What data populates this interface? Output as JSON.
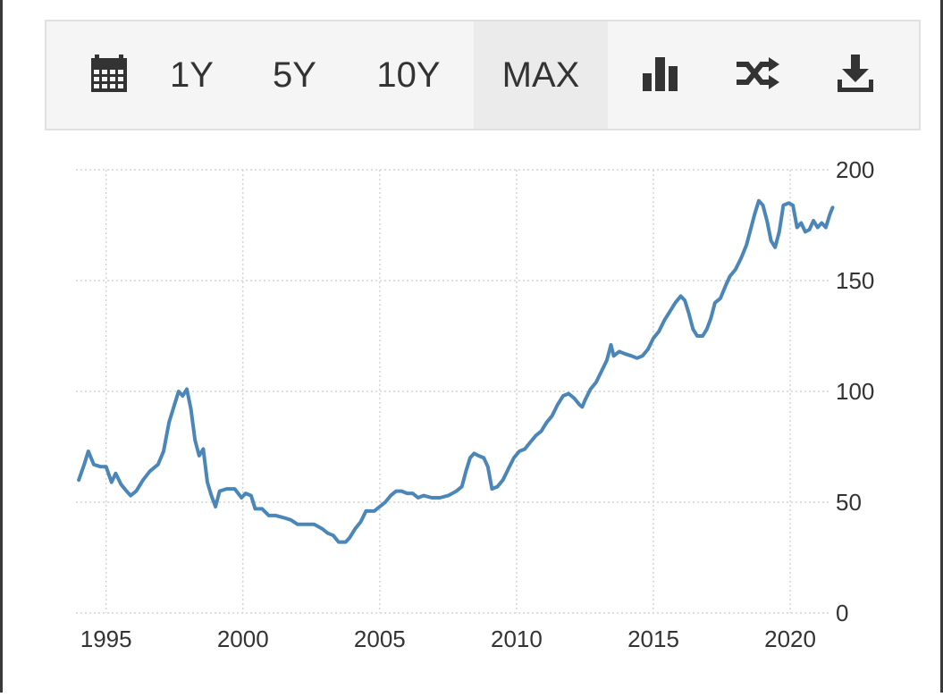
{
  "toolbar": {
    "calendar_icon": "calendar-icon",
    "range_1y": "1Y",
    "range_5y": "5Y",
    "range_10y": "10Y",
    "range_max": "MAX",
    "active_range": "MAX",
    "chart_type_icon": "bar-chart-icon",
    "compare_icon": "shuffle-icon",
    "download_icon": "download-icon"
  },
  "colors": {
    "line": "#4a86b8",
    "grid": "#d4d4d4",
    "axis_text": "#333333"
  },
  "chart_data": {
    "type": "line",
    "title": "",
    "xlabel": "",
    "ylabel": "",
    "x_ticks": [
      "1995",
      "2000",
      "2005",
      "2010",
      "2015",
      "2020"
    ],
    "y_ticks": [
      "0",
      "50",
      "100",
      "150",
      "200"
    ],
    "xlim": [
      1993.9,
      2021.5
    ],
    "ylim": [
      0,
      200
    ],
    "grid": true,
    "legend": "none",
    "series": [
      {
        "values": [
          [
            1994.0,
            60
          ],
          [
            1994.2,
            67
          ],
          [
            1994.35,
            73
          ],
          [
            1994.55,
            67
          ],
          [
            1994.8,
            66
          ],
          [
            1995.0,
            66
          ],
          [
            1995.2,
            59
          ],
          [
            1995.35,
            63
          ],
          [
            1995.55,
            58
          ],
          [
            1995.75,
            55
          ],
          [
            1995.9,
            53
          ],
          [
            1996.1,
            55
          ],
          [
            1996.35,
            60
          ],
          [
            1996.6,
            64
          ],
          [
            1996.9,
            67
          ],
          [
            1997.1,
            73
          ],
          [
            1997.3,
            86
          ],
          [
            1997.5,
            94
          ],
          [
            1997.65,
            100
          ],
          [
            1997.8,
            98
          ],
          [
            1997.95,
            101
          ],
          [
            1998.1,
            92
          ],
          [
            1998.25,
            78
          ],
          [
            1998.4,
            71
          ],
          [
            1998.55,
            74
          ],
          [
            1998.7,
            59
          ],
          [
            1998.85,
            53
          ],
          [
            1999.0,
            48
          ],
          [
            1999.15,
            55
          ],
          [
            1999.4,
            56
          ],
          [
            1999.7,
            56
          ],
          [
            1999.95,
            52
          ],
          [
            2000.1,
            54
          ],
          [
            2000.3,
            53
          ],
          [
            2000.45,
            47
          ],
          [
            2000.7,
            47
          ],
          [
            2000.95,
            44
          ],
          [
            2001.2,
            44
          ],
          [
            2001.5,
            43
          ],
          [
            2001.75,
            42
          ],
          [
            2002.0,
            40
          ],
          [
            2002.3,
            40
          ],
          [
            2002.6,
            40
          ],
          [
            2002.9,
            38
          ],
          [
            2003.1,
            36
          ],
          [
            2003.3,
            35
          ],
          [
            2003.5,
            32
          ],
          [
            2003.75,
            32
          ],
          [
            2003.9,
            34
          ],
          [
            2004.1,
            38
          ],
          [
            2004.3,
            41
          ],
          [
            2004.5,
            46
          ],
          [
            2004.8,
            46
          ],
          [
            2005.0,
            48
          ],
          [
            2005.2,
            50
          ],
          [
            2005.4,
            53
          ],
          [
            2005.6,
            55
          ],
          [
            2005.8,
            55
          ],
          [
            2006.0,
            54
          ],
          [
            2006.2,
            54
          ],
          [
            2006.4,
            52
          ],
          [
            2006.6,
            53
          ],
          [
            2006.9,
            52
          ],
          [
            2007.2,
            52
          ],
          [
            2007.5,
            53
          ],
          [
            2007.8,
            55
          ],
          [
            2008.0,
            57
          ],
          [
            2008.15,
            64
          ],
          [
            2008.3,
            70
          ],
          [
            2008.45,
            72
          ],
          [
            2008.6,
            71
          ],
          [
            2008.8,
            70
          ],
          [
            2008.95,
            66
          ],
          [
            2009.1,
            56
          ],
          [
            2009.3,
            57
          ],
          [
            2009.5,
            60
          ],
          [
            2009.7,
            65
          ],
          [
            2009.9,
            70
          ],
          [
            2010.1,
            73
          ],
          [
            2010.3,
            74
          ],
          [
            2010.5,
            77
          ],
          [
            2010.7,
            80
          ],
          [
            2010.9,
            82
          ],
          [
            2011.1,
            86
          ],
          [
            2011.3,
            89
          ],
          [
            2011.5,
            94
          ],
          [
            2011.7,
            98
          ],
          [
            2011.9,
            99
          ],
          [
            2012.1,
            97
          ],
          [
            2012.3,
            94
          ],
          [
            2012.4,
            93
          ],
          [
            2012.5,
            96
          ],
          [
            2012.7,
            101
          ],
          [
            2012.9,
            104
          ],
          [
            2013.1,
            109
          ],
          [
            2013.3,
            114
          ],
          [
            2013.45,
            121
          ],
          [
            2013.55,
            116
          ],
          [
            2013.75,
            118
          ],
          [
            2013.95,
            117
          ],
          [
            2014.2,
            116
          ],
          [
            2014.4,
            115
          ],
          [
            2014.6,
            116
          ],
          [
            2014.8,
            119
          ],
          [
            2015.0,
            124
          ],
          [
            2015.2,
            127
          ],
          [
            2015.4,
            132
          ],
          [
            2015.6,
            136
          ],
          [
            2015.8,
            140
          ],
          [
            2016.0,
            143
          ],
          [
            2016.15,
            141
          ],
          [
            2016.3,
            135
          ],
          [
            2016.45,
            128
          ],
          [
            2016.6,
            125
          ],
          [
            2016.8,
            125
          ],
          [
            2016.95,
            128
          ],
          [
            2017.1,
            133
          ],
          [
            2017.25,
            140
          ],
          [
            2017.45,
            142
          ],
          [
            2017.65,
            148
          ],
          [
            2017.8,
            152
          ],
          [
            2018.0,
            155
          ],
          [
            2018.2,
            160
          ],
          [
            2018.4,
            166
          ],
          [
            2018.55,
            173
          ],
          [
            2018.7,
            180
          ],
          [
            2018.85,
            186
          ],
          [
            2019.0,
            184
          ],
          [
            2019.15,
            177
          ],
          [
            2019.3,
            168
          ],
          [
            2019.45,
            165
          ],
          [
            2019.6,
            172
          ],
          [
            2019.75,
            184
          ],
          [
            2019.95,
            185
          ],
          [
            2020.1,
            184
          ],
          [
            2020.25,
            174
          ],
          [
            2020.4,
            176
          ],
          [
            2020.55,
            172
          ],
          [
            2020.7,
            173
          ],
          [
            2020.85,
            177
          ],
          [
            2021.0,
            174
          ],
          [
            2021.15,
            176
          ],
          [
            2021.3,
            174
          ],
          [
            2021.45,
            180
          ],
          [
            2021.55,
            183
          ]
        ]
      }
    ]
  }
}
